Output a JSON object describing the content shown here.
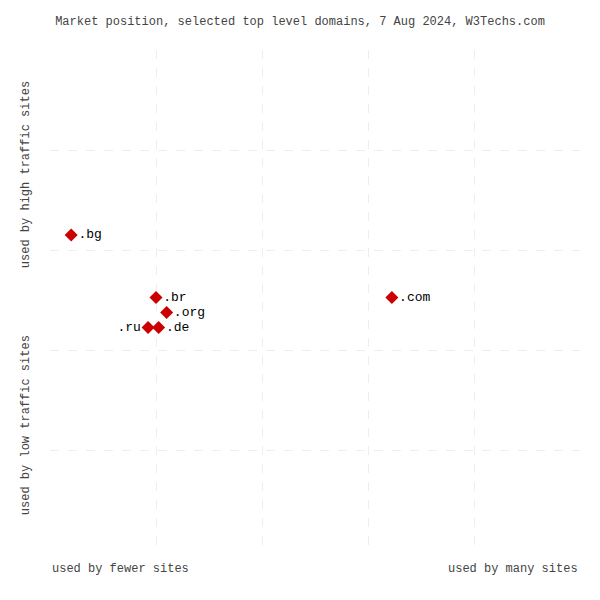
{
  "chart_data": {
    "type": "scatter",
    "title": "Market position, selected top level domains, 7 Aug 2024, W3Techs.com",
    "xlabel_left": "used by fewer sites",
    "xlabel_right": "used by many sites",
    "ylabel_bottom": "used by low traffic sites",
    "ylabel_top": "used by high traffic sites",
    "labels": [
      ".bg",
      ".br",
      ".org",
      ".ru",
      ".de",
      ".com"
    ],
    "x": [
      0.04,
      0.2,
      0.22,
      0.185,
      0.205,
      0.645
    ],
    "y": [
      0.63,
      0.505,
      0.475,
      0.445,
      0.445,
      0.505
    ],
    "color": "#cc0000",
    "marker": "diamond",
    "xlim": [
      0,
      1
    ],
    "ylim": [
      0,
      1
    ],
    "xticks": [
      0,
      0.2,
      0.4,
      0.6,
      0.8,
      1
    ],
    "yticks": [
      0,
      0.2,
      0.4,
      0.6,
      0.8,
      1
    ],
    "grid": true,
    "tick_labels": false
  }
}
